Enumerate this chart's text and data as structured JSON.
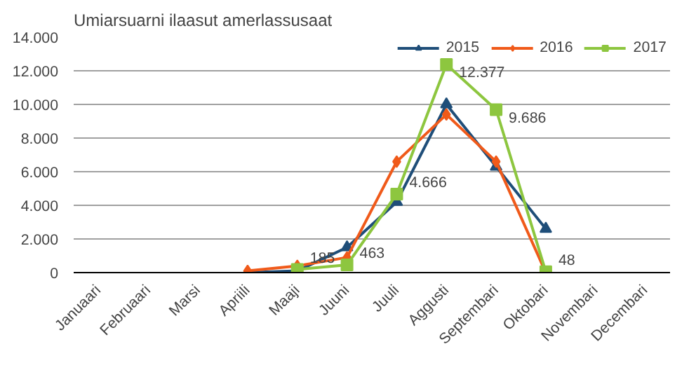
{
  "chart_data": {
    "type": "line",
    "title": "Umiarsuarni ilaasut amerlassusaat",
    "categories": [
      "Januaari",
      "Februaari",
      "Marsi",
      "Apriili",
      "Maaji",
      "Juuni",
      "Juuli",
      "Aggusti",
      "Septembari",
      "Oktobari",
      "Novembari",
      "Decembari"
    ],
    "series": [
      {
        "name": "2015",
        "color": "#1f4e79",
        "marker": "triangle",
        "values": [
          null,
          null,
          null,
          0,
          100,
          1500,
          4200,
          10000,
          6300,
          2600,
          null,
          null
        ]
      },
      {
        "name": "2016",
        "color": "#f05a1a",
        "marker": "diamond",
        "values": [
          null,
          null,
          null,
          100,
          400,
          900,
          6600,
          9400,
          6600,
          0,
          null,
          null
        ]
      },
      {
        "name": "2017",
        "color": "#8dc63f",
        "marker": "square",
        "values": [
          null,
          null,
          null,
          null,
          185,
          463,
          4666,
          12377,
          9686,
          48,
          null,
          null
        ],
        "value_labels": [
          null,
          null,
          null,
          null,
          "185",
          "463",
          "4.666",
          "12.377",
          "9.686",
          "48",
          null,
          null
        ]
      }
    ],
    "ylim": [
      0,
      14000
    ],
    "yticks": [
      {
        "value": 0,
        "label": "0"
      },
      {
        "value": 2000,
        "label": "2.000"
      },
      {
        "value": 4000,
        "label": "4.000"
      },
      {
        "value": 6000,
        "label": "6.000"
      },
      {
        "value": 8000,
        "label": "8.000"
      },
      {
        "value": 10000,
        "label": "10.000"
      },
      {
        "value": 12000,
        "label": "12.000"
      },
      {
        "value": 14000,
        "label": "14.000"
      }
    ],
    "grid": "y",
    "legend": "top right",
    "line_style": "solid"
  }
}
